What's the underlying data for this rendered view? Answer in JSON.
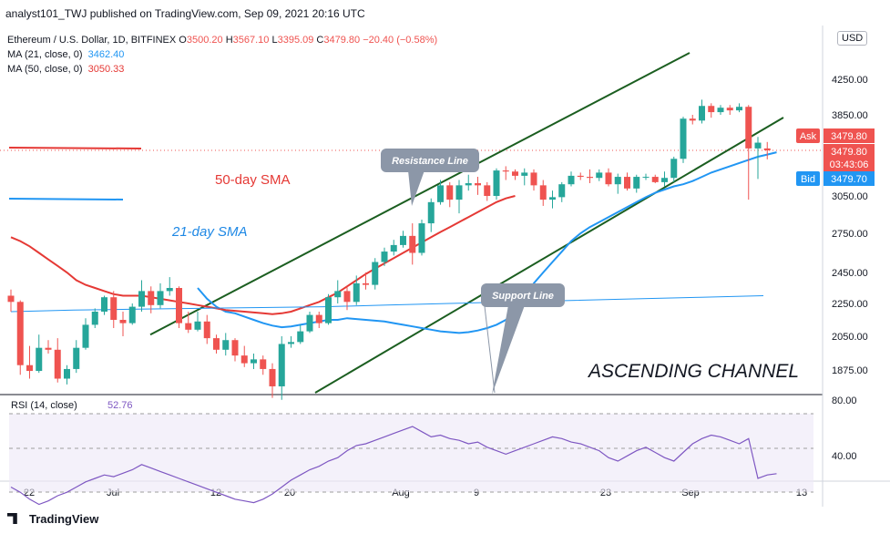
{
  "header": {
    "publisher_line": "analyst101_TWJ published on TradingView.com, Sep 09, 2021 20:16 UTC"
  },
  "legend": {
    "symbol": "Ethereum / U.S. Dollar, 1D, BITFINEX",
    "o_label": "O",
    "o_value": "3500.20",
    "h_label": "H",
    "h_value": "3567.10",
    "l_label": "L",
    "l_value": "3395.09",
    "c_label": "C",
    "c_value": "3479.80",
    "change": "−20.40 (−0.58%)",
    "ma21_label": "MA (21, close, 0)",
    "ma21_value": "3462.40",
    "ma50_label": "MA (50, close, 0)",
    "ma50_value": "3050.33"
  },
  "currency": "USD",
  "price_tags": {
    "ask_label": "Ask",
    "ask_value": "3479.80",
    "last_value": "3479.80",
    "countdown": "03:43:06",
    "bid_label": "Bid",
    "bid_value": "3479.70"
  },
  "annotations": {
    "sma50": "50-day SMA",
    "sma21": "21-day SMA",
    "resistance": "Resistance Line",
    "support": "Support Line",
    "channel": "ASCENDING CHANNEL"
  },
  "rsi_legend": {
    "label": "RSI (14, close)",
    "value": "52.76"
  },
  "footer": {
    "brand": "TradingView"
  },
  "colors": {
    "up": "#26a69a",
    "down": "#ef5350",
    "ma21": "#2196f3",
    "ma50": "#e53935",
    "channel": "#1b5e20",
    "rsi": "#7e57c2",
    "callout": "#8c97a8"
  },
  "chart_data": [
    {
      "type": "candlestick",
      "title": "Ethereum / U.S. Dollar, 1D, BITFINEX",
      "y_ticks": [
        4250,
        3850,
        3479.8,
        3050,
        2750,
        2450,
        2250,
        2050,
        1875
      ],
      "y_tick_labels": [
        "4250.00",
        "3850.00",
        "3479.80",
        "3050.00",
        "2750.00",
        "2450.00",
        "2250.00",
        "2050.00",
        "1875.00"
      ],
      "x_ticks": [
        "22",
        "Jul",
        "12",
        "20",
        "Aug",
        "9",
        "23",
        "Sep",
        "13"
      ],
      "candles": [
        {
          "o": 2300,
          "h": 2340,
          "l": 2200,
          "c": 2260
        },
        {
          "o": 2260,
          "h": 2270,
          "l": 1850,
          "c": 1900
        },
        {
          "o": 1900,
          "h": 2000,
          "l": 1830,
          "c": 1870
        },
        {
          "o": 1870,
          "h": 2060,
          "l": 1860,
          "c": 1990
        },
        {
          "o": 1990,
          "h": 2030,
          "l": 1960,
          "c": 1980
        },
        {
          "o": 1980,
          "h": 2040,
          "l": 1810,
          "c": 1830
        },
        {
          "o": 1830,
          "h": 1900,
          "l": 1800,
          "c": 1880
        },
        {
          "o": 1880,
          "h": 2030,
          "l": 1860,
          "c": 1990
        },
        {
          "o": 1990,
          "h": 2160,
          "l": 1980,
          "c": 2120
        },
        {
          "o": 2120,
          "h": 2220,
          "l": 2100,
          "c": 2200
        },
        {
          "o": 2200,
          "h": 2300,
          "l": 2180,
          "c": 2290
        },
        {
          "o": 2290,
          "h": 2330,
          "l": 2100,
          "c": 2150
        },
        {
          "o": 2150,
          "h": 2200,
          "l": 2050,
          "c": 2130
        },
        {
          "o": 2130,
          "h": 2250,
          "l": 2120,
          "c": 2230
        },
        {
          "o": 2230,
          "h": 2400,
          "l": 2200,
          "c": 2330
        },
        {
          "o": 2330,
          "h": 2360,
          "l": 2190,
          "c": 2240
        },
        {
          "o": 2240,
          "h": 2380,
          "l": 2220,
          "c": 2330
        },
        {
          "o": 2330,
          "h": 2420,
          "l": 2300,
          "c": 2350
        },
        {
          "o": 2350,
          "h": 2360,
          "l": 2100,
          "c": 2130
        },
        {
          "o": 2130,
          "h": 2200,
          "l": 2070,
          "c": 2090
        },
        {
          "o": 2090,
          "h": 2200,
          "l": 2080,
          "c": 2140
        },
        {
          "o": 2140,
          "h": 2180,
          "l": 2010,
          "c": 2040
        },
        {
          "o": 2040,
          "h": 2060,
          "l": 1960,
          "c": 1980
        },
        {
          "o": 1980,
          "h": 2070,
          "l": 1950,
          "c": 2030
        },
        {
          "o": 2030,
          "h": 2040,
          "l": 1920,
          "c": 1950
        },
        {
          "o": 1950,
          "h": 2000,
          "l": 1890,
          "c": 1910
        },
        {
          "o": 1910,
          "h": 1960,
          "l": 1880,
          "c": 1930
        },
        {
          "o": 1930,
          "h": 1950,
          "l": 1850,
          "c": 1880
        },
        {
          "o": 1880,
          "h": 1910,
          "l": 1730,
          "c": 1790
        },
        {
          "o": 1790,
          "h": 2050,
          "l": 1720,
          "c": 2010
        },
        {
          "o": 2010,
          "h": 2050,
          "l": 1990,
          "c": 2020
        },
        {
          "o": 2020,
          "h": 2120,
          "l": 2010,
          "c": 2080
        },
        {
          "o": 2080,
          "h": 2200,
          "l": 2070,
          "c": 2180
        },
        {
          "o": 2180,
          "h": 2200,
          "l": 2100,
          "c": 2130
        },
        {
          "o": 2130,
          "h": 2310,
          "l": 2120,
          "c": 2290
        },
        {
          "o": 2290,
          "h": 2400,
          "l": 2250,
          "c": 2330
        },
        {
          "o": 2330,
          "h": 2360,
          "l": 2210,
          "c": 2260
        },
        {
          "o": 2260,
          "h": 2430,
          "l": 2240,
          "c": 2380
        },
        {
          "o": 2380,
          "h": 2450,
          "l": 2340,
          "c": 2370
        },
        {
          "o": 2370,
          "h": 2560,
          "l": 2340,
          "c": 2530
        },
        {
          "o": 2530,
          "h": 2640,
          "l": 2500,
          "c": 2610
        },
        {
          "o": 2610,
          "h": 2700,
          "l": 2580,
          "c": 2660
        },
        {
          "o": 2660,
          "h": 2770,
          "l": 2640,
          "c": 2730
        },
        {
          "o": 2730,
          "h": 2830,
          "l": 2510,
          "c": 2600
        },
        {
          "o": 2600,
          "h": 2860,
          "l": 2580,
          "c": 2830
        },
        {
          "o": 2830,
          "h": 3030,
          "l": 2760,
          "c": 3000
        },
        {
          "o": 3000,
          "h": 3200,
          "l": 2980,
          "c": 3150
        },
        {
          "o": 3150,
          "h": 3180,
          "l": 2960,
          "c": 3020
        },
        {
          "o": 3020,
          "h": 3200,
          "l": 2910,
          "c": 3150
        },
        {
          "o": 3150,
          "h": 3250,
          "l": 3100,
          "c": 3170
        },
        {
          "o": 3170,
          "h": 3230,
          "l": 3060,
          "c": 3150
        },
        {
          "o": 3150,
          "h": 3180,
          "l": 3010,
          "c": 3050
        },
        {
          "o": 3050,
          "h": 3310,
          "l": 3020,
          "c": 3290
        },
        {
          "o": 3290,
          "h": 3330,
          "l": 3200,
          "c": 3280
        },
        {
          "o": 3280,
          "h": 3300,
          "l": 3200,
          "c": 3240
        },
        {
          "o": 3240,
          "h": 3310,
          "l": 3150,
          "c": 3270
        },
        {
          "o": 3270,
          "h": 3300,
          "l": 3100,
          "c": 3150
        },
        {
          "o": 3150,
          "h": 3200,
          "l": 2970,
          "c": 3020
        },
        {
          "o": 3020,
          "h": 3100,
          "l": 2950,
          "c": 3040
        },
        {
          "o": 3040,
          "h": 3180,
          "l": 3000,
          "c": 3160
        },
        {
          "o": 3160,
          "h": 3280,
          "l": 3140,
          "c": 3240
        },
        {
          "o": 3240,
          "h": 3270,
          "l": 3200,
          "c": 3230
        },
        {
          "o": 3230,
          "h": 3300,
          "l": 3170,
          "c": 3220
        },
        {
          "o": 3220,
          "h": 3300,
          "l": 3190,
          "c": 3270
        },
        {
          "o": 3270,
          "h": 3310,
          "l": 3140,
          "c": 3160
        },
        {
          "o": 3160,
          "h": 3260,
          "l": 3070,
          "c": 3230
        },
        {
          "o": 3230,
          "h": 3270,
          "l": 3100,
          "c": 3120
        },
        {
          "o": 3120,
          "h": 3250,
          "l": 3080,
          "c": 3230
        },
        {
          "o": 3230,
          "h": 3260,
          "l": 3200,
          "c": 3230
        },
        {
          "o": 3230,
          "h": 3250,
          "l": 3170,
          "c": 3180
        },
        {
          "o": 3180,
          "h": 3280,
          "l": 3140,
          "c": 3220
        },
        {
          "o": 3220,
          "h": 3420,
          "l": 3180,
          "c": 3400
        },
        {
          "o": 3400,
          "h": 3830,
          "l": 3360,
          "c": 3810
        },
        {
          "o": 3810,
          "h": 3850,
          "l": 3750,
          "c": 3790
        },
        {
          "o": 3790,
          "h": 4020,
          "l": 3760,
          "c": 3950
        },
        {
          "o": 3950,
          "h": 3980,
          "l": 3820,
          "c": 3880
        },
        {
          "o": 3880,
          "h": 3960,
          "l": 3850,
          "c": 3930
        },
        {
          "o": 3930,
          "h": 3960,
          "l": 3850,
          "c": 3900
        },
        {
          "o": 3900,
          "h": 3980,
          "l": 3880,
          "c": 3940
        },
        {
          "o": 3940,
          "h": 3960,
          "l": 3020,
          "c": 3500
        },
        {
          "o": 3500,
          "h": 3620,
          "l": 3210,
          "c": 3560
        },
        {
          "o": 3500,
          "h": 3567,
          "l": 3395,
          "c": 3480
        }
      ],
      "ma21": [
        2350,
        2280,
        2230,
        2200,
        2190,
        2170,
        2150,
        2130,
        2115,
        2105,
        2110,
        2120,
        2130,
        2140,
        2150,
        2150,
        2160,
        2155,
        2150,
        2145,
        2140,
        2130,
        2120,
        2110,
        2100,
        2090,
        2080,
        2075,
        2070,
        2075,
        2085,
        2100,
        2120,
        2150,
        2200,
        2280,
        2380,
        2450,
        2530,
        2610,
        2690,
        2750,
        2800,
        2840,
        2880,
        2920,
        2960,
        3000,
        3040,
        3080,
        3110,
        3140,
        3160,
        3190,
        3230,
        3270,
        3300,
        3330,
        3360,
        3390,
        3420,
        3440,
        3462
      ],
      "ma50": [
        2720,
        2690,
        2650,
        2600,
        2550,
        2500,
        2450,
        2400,
        2370,
        2350,
        2330,
        2310,
        2300,
        2300,
        2300,
        2290,
        2280,
        2270,
        2260,
        2250,
        2240,
        2230,
        2220,
        2210,
        2205,
        2200,
        2195,
        2190,
        2185,
        2190,
        2200,
        2220,
        2240,
        2260,
        2290,
        2320,
        2360,
        2400,
        2440,
        2480,
        2520,
        2560,
        2600,
        2640,
        2680,
        2720,
        2760,
        2800,
        2840,
        2880,
        2920,
        2960,
        3000,
        3030,
        3050
      ],
      "ma200": [
        2200,
        2210,
        2215,
        2220,
        2225,
        2230,
        2240,
        2250,
        2260,
        2270,
        2280,
        2290,
        2300
      ],
      "resistance_line": [
        [
          2060,
          1880
        ],
        [
          4400,
          4480
        ]
      ],
      "support_line": [
        [
          1650,
          2050
        ],
        [
          3850,
          3750
        ]
      ]
    },
    {
      "type": "line",
      "title": "RSI (14, close)",
      "y_ticks": [
        80,
        40
      ],
      "y_tick_labels": [
        "80.00",
        "40.00"
      ],
      "values": [
        45,
        42,
        38,
        35,
        37,
        40,
        42,
        45,
        48,
        50,
        52,
        51,
        53,
        55,
        58,
        56,
        54,
        52,
        50,
        48,
        46,
        44,
        42,
        40,
        38,
        37,
        36,
        38,
        41,
        45,
        49,
        52,
        55,
        57,
        60,
        62,
        66,
        69,
        70,
        72,
        74,
        76,
        78,
        80,
        77,
        74,
        75,
        73,
        72,
        70,
        71,
        68,
        66,
        64,
        66,
        68,
        70,
        72,
        74,
        73,
        71,
        70,
        68,
        66,
        62,
        60,
        63,
        66,
        68,
        65,
        62,
        60,
        65,
        70,
        73,
        75,
        74,
        72,
        70,
        73,
        50,
        52,
        52.76
      ]
    }
  ]
}
